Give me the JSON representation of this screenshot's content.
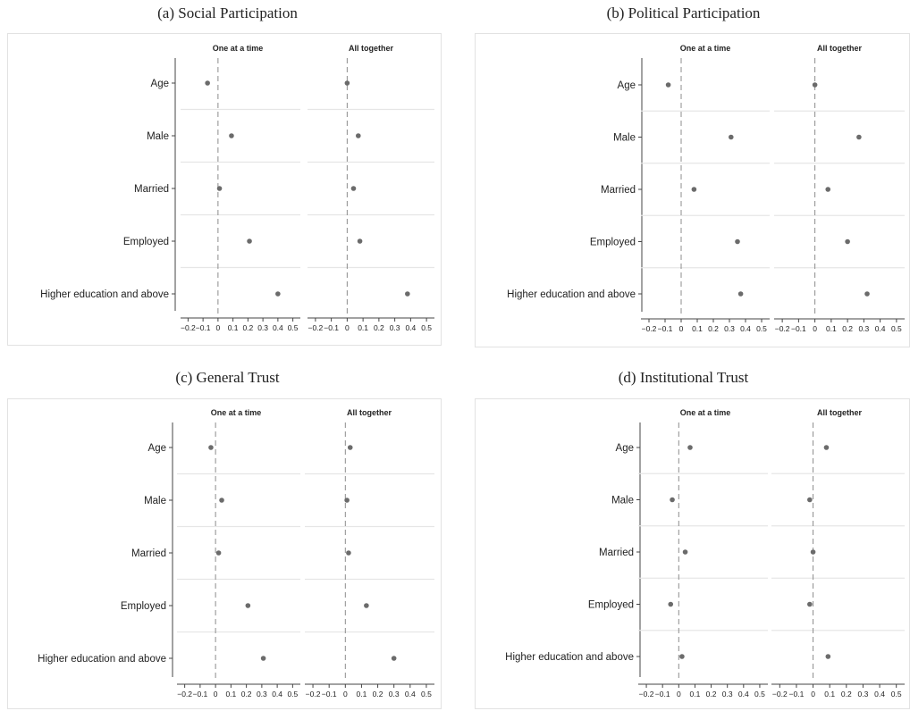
{
  "chart_data": [
    {
      "type": "scatter",
      "title": "(a) Social Participation",
      "categories": [
        "Age",
        "Male",
        "Married",
        "Employed",
        "Higher education and above"
      ],
      "xlim": [
        -0.25,
        0.55
      ],
      "xticks": [
        "-0.2",
        "-0.1",
        "0",
        "0.1",
        "0.2",
        "0.3",
        "0.4",
        "0.5"
      ],
      "xtick_labels": [
        "−0.2",
        "−0.1",
        "0",
        "0.1",
        "0.2",
        "0.3",
        "0.4",
        "0.5"
      ],
      "reference_line": 0,
      "grid": false,
      "series": [
        {
          "name": "One at a time",
          "values": [
            -0.07,
            0.09,
            0.01,
            0.21,
            0.4
          ]
        },
        {
          "name": "All together",
          "values": [
            0.0,
            0.07,
            0.04,
            0.08,
            0.38
          ]
        }
      ]
    },
    {
      "type": "scatter",
      "title": "(b) Political Participation",
      "categories": [
        "Age",
        "Male",
        "Married",
        "Employed",
        "Higher education and above"
      ],
      "xlim": [
        -0.25,
        0.55
      ],
      "xticks": [
        "-0.2",
        "-0.1",
        "0",
        "0.1",
        "0.2",
        "0.3",
        "0.4",
        "0.5"
      ],
      "xtick_labels": [
        "−0.2",
        "−0.1",
        "0",
        "0.1",
        "0.2",
        "0.3",
        "0.4",
        "0.5"
      ],
      "reference_line": 0,
      "grid": false,
      "series": [
        {
          "name": "One at a time",
          "values": [
            -0.08,
            0.31,
            0.08,
            0.35,
            0.37
          ]
        },
        {
          "name": "All together",
          "values": [
            0.0,
            0.27,
            0.08,
            0.2,
            0.32
          ]
        }
      ]
    },
    {
      "type": "scatter",
      "title": "(c) General Trust",
      "categories": [
        "Age",
        "Male",
        "Married",
        "Employed",
        "Higher education and above"
      ],
      "xlim": [
        -0.25,
        0.55
      ],
      "xticks": [
        "-0.2",
        "-0.1",
        "0",
        "0.1",
        "0.2",
        "0.3",
        "0.4",
        "0.5"
      ],
      "xtick_labels": [
        "−0.2",
        "−0.1",
        "0",
        "0.1",
        "0.2",
        "0.3",
        "0.4",
        "0.5"
      ],
      "reference_line": 0,
      "grid": false,
      "series": [
        {
          "name": "One at a time",
          "values": [
            -0.03,
            0.04,
            0.02,
            0.21,
            0.31
          ]
        },
        {
          "name": "All together",
          "values": [
            0.03,
            0.01,
            0.02,
            0.13,
            0.3
          ]
        }
      ]
    },
    {
      "type": "scatter",
      "title": "(d) Institutional Trust",
      "categories": [
        "Age",
        "Male",
        "Married",
        "Employed",
        "Higher education and above"
      ],
      "xlim": [
        -0.25,
        0.55
      ],
      "xticks": [
        "-0.2",
        "-0.1",
        "0",
        "0.1",
        "0.2",
        "0.3",
        "0.4",
        "0.5"
      ],
      "xtick_labels": [
        "−0.2",
        "−0.1",
        "0",
        "0.1",
        "0.2",
        "0.3",
        "0.4",
        "0.5"
      ],
      "reference_line": 0,
      "grid": false,
      "series": [
        {
          "name": "One at a time",
          "values": [
            0.07,
            -0.04,
            0.04,
            -0.05,
            0.02
          ]
        },
        {
          "name": "All together",
          "values": [
            0.08,
            -0.02,
            0.0,
            -0.02,
            0.09
          ]
        }
      ]
    }
  ],
  "colors": {
    "marker": "#6b6b6b",
    "reference_line": "#8c8c8c",
    "separator": "#e6e6e6",
    "axis": "#444444",
    "panel_border": "#e2e2e2"
  }
}
